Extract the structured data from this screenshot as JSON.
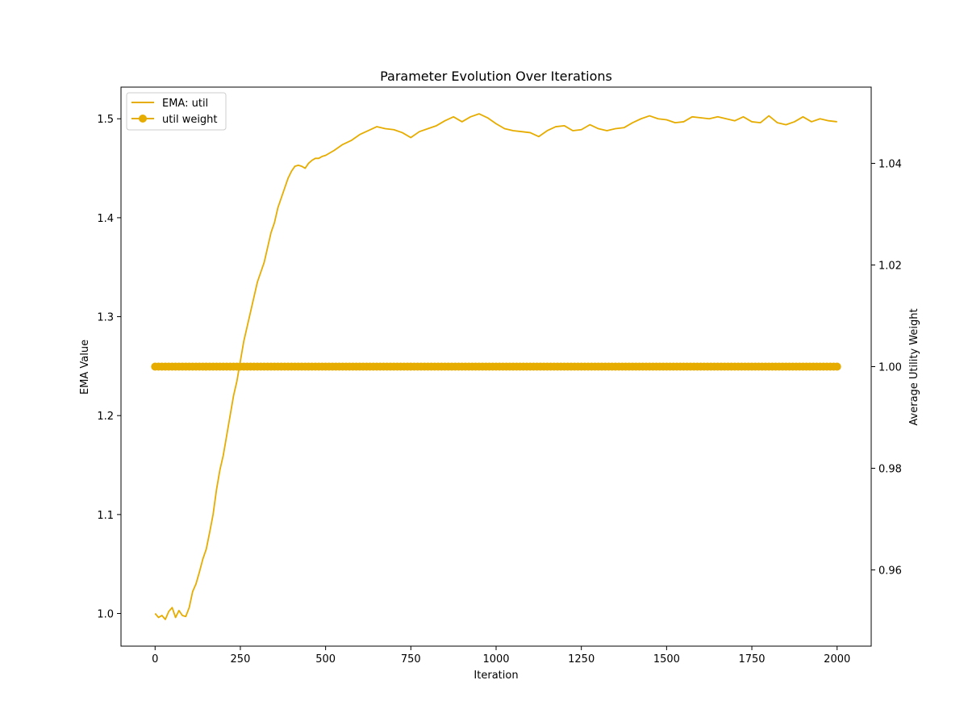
{
  "chart_data": {
    "type": "line",
    "title": "Parameter Evolution Over Iterations",
    "xlabel": "Iteration",
    "ylabel_left": "EMA Value",
    "ylabel_right": "Average Utility Weight",
    "xlim": [
      -100,
      2100
    ],
    "ylim_left": [
      0.967,
      1.532
    ],
    "ylim_right": [
      0.945,
      1.055
    ],
    "x_ticks": [
      0,
      250,
      500,
      750,
      1000,
      1250,
      1500,
      1750,
      2000
    ],
    "y_ticks_left": [
      1.0,
      1.1,
      1.2,
      1.3,
      1.4,
      1.5
    ],
    "y_ticks_left_labels": [
      "1.0",
      "1.1",
      "1.2",
      "1.3",
      "1.4",
      "1.5"
    ],
    "y_ticks_right": [
      0.96,
      0.98,
      1.0,
      1.02,
      1.04
    ],
    "y_ticks_right_labels": [
      "0.96",
      "0.98",
      "1.00",
      "1.02",
      "1.04"
    ],
    "grid": false,
    "legend_position": "top-left",
    "color": "#e6ac00",
    "series": [
      {
        "name": "EMA: util",
        "axis": "left",
        "style": "line",
        "x": [
          0,
          10,
          20,
          30,
          40,
          50,
          60,
          70,
          80,
          90,
          100,
          110,
          120,
          130,
          140,
          150,
          160,
          170,
          180,
          190,
          200,
          210,
          220,
          230,
          240,
          250,
          260,
          270,
          280,
          290,
          300,
          310,
          320,
          330,
          340,
          350,
          360,
          370,
          380,
          390,
          400,
          410,
          420,
          430,
          440,
          450,
          460,
          470,
          480,
          490,
          500,
          525,
          550,
          575,
          600,
          625,
          650,
          675,
          700,
          725,
          750,
          775,
          800,
          825,
          850,
          875,
          900,
          925,
          950,
          975,
          1000,
          1025,
          1050,
          1075,
          1100,
          1125,
          1150,
          1175,
          1200,
          1225,
          1250,
          1275,
          1300,
          1325,
          1350,
          1375,
          1400,
          1425,
          1450,
          1475,
          1500,
          1525,
          1550,
          1575,
          1600,
          1625,
          1650,
          1675,
          1700,
          1725,
          1750,
          1775,
          1800,
          1825,
          1850,
          1875,
          1900,
          1925,
          1950,
          1975,
          2000
        ],
        "y": [
          1.0,
          0.996,
          0.998,
          0.994,
          1.002,
          1.006,
          0.996,
          1.003,
          0.998,
          0.997,
          1.006,
          1.022,
          1.03,
          1.042,
          1.055,
          1.065,
          1.082,
          1.1,
          1.125,
          1.145,
          1.16,
          1.18,
          1.2,
          1.22,
          1.235,
          1.255,
          1.275,
          1.29,
          1.305,
          1.32,
          1.335,
          1.345,
          1.355,
          1.37,
          1.385,
          1.395,
          1.41,
          1.42,
          1.43,
          1.44,
          1.447,
          1.452,
          1.453,
          1.452,
          1.45,
          1.455,
          1.458,
          1.46,
          1.46,
          1.462,
          1.463,
          1.468,
          1.474,
          1.478,
          1.484,
          1.488,
          1.492,
          1.49,
          1.489,
          1.486,
          1.481,
          1.487,
          1.49,
          1.493,
          1.498,
          1.502,
          1.497,
          1.502,
          1.505,
          1.501,
          1.495,
          1.49,
          1.488,
          1.487,
          1.486,
          1.482,
          1.488,
          1.492,
          1.493,
          1.488,
          1.489,
          1.494,
          1.49,
          1.488,
          1.49,
          1.491,
          1.496,
          1.5,
          1.503,
          1.5,
          1.499,
          1.496,
          1.497,
          1.502,
          1.501,
          1.5,
          1.502,
          1.5,
          1.498,
          1.502,
          1.497,
          1.496,
          1.503,
          1.496,
          1.494,
          1.497,
          1.502,
          1.497,
          1.5,
          1.498,
          1.497
        ]
      },
      {
        "name": "util weight",
        "axis": "right",
        "style": "line-marker",
        "x_start": 0,
        "x_end": 2000,
        "x_step": 10,
        "value": 1.0
      }
    ]
  }
}
